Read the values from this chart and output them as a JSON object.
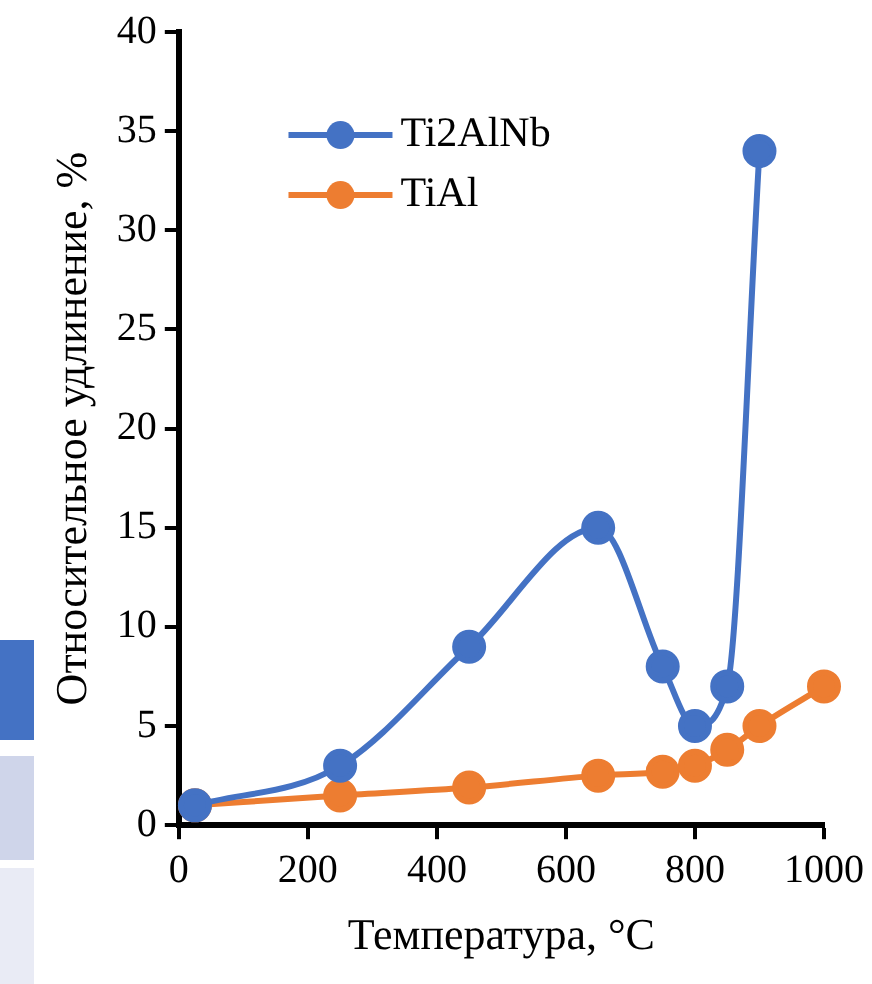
{
  "chart_data": {
    "type": "line",
    "xlabel": "Температура, °C",
    "ylabel": "Относительное удлинение, %",
    "xlim": [
      0,
      1000
    ],
    "xticks": [
      0,
      200,
      400,
      600,
      800,
      1000
    ],
    "ylim": [
      0,
      40
    ],
    "yticks": [
      0,
      5,
      10,
      15,
      20,
      25,
      30,
      35,
      40
    ],
    "grid": false,
    "legend": "top left",
    "marker": "circle",
    "series": [
      {
        "name": "Ti2AlNb",
        "color": "#4472c4",
        "x": [
          25,
          250,
          450,
          650,
          750,
          800,
          850,
          900
        ],
        "values": [
          1,
          3,
          9,
          15,
          8,
          5,
          7,
          34
        ]
      },
      {
        "name": "TiAl",
        "color": "#ed7d31",
        "x": [
          25,
          250,
          450,
          650,
          750,
          800,
          850,
          900,
          1000
        ],
        "values": [
          1,
          1.5,
          1.9,
          2.5,
          2.7,
          3,
          3.8,
          5,
          7
        ]
      }
    ]
  }
}
